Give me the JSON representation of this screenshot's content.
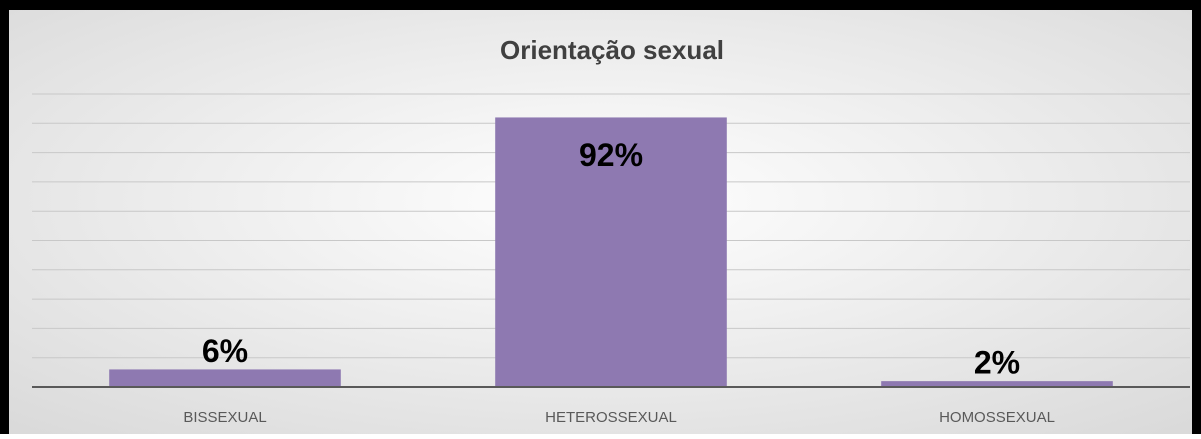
{
  "chart_data": {
    "type": "bar",
    "title": "Orientação sexual",
    "categories": [
      "BISSEXUAL",
      "HETEROSSEXUAL",
      "HOMOSSEXUAL"
    ],
    "values": [
      6,
      92,
      2
    ],
    "value_labels": [
      "6%",
      "92%",
      "2%"
    ],
    "color": "#8e79b1",
    "ylim": [
      0,
      100
    ],
    "yticks": [
      0,
      10,
      20,
      30,
      40,
      50,
      60,
      70,
      80,
      90,
      100
    ],
    "grid": true
  }
}
